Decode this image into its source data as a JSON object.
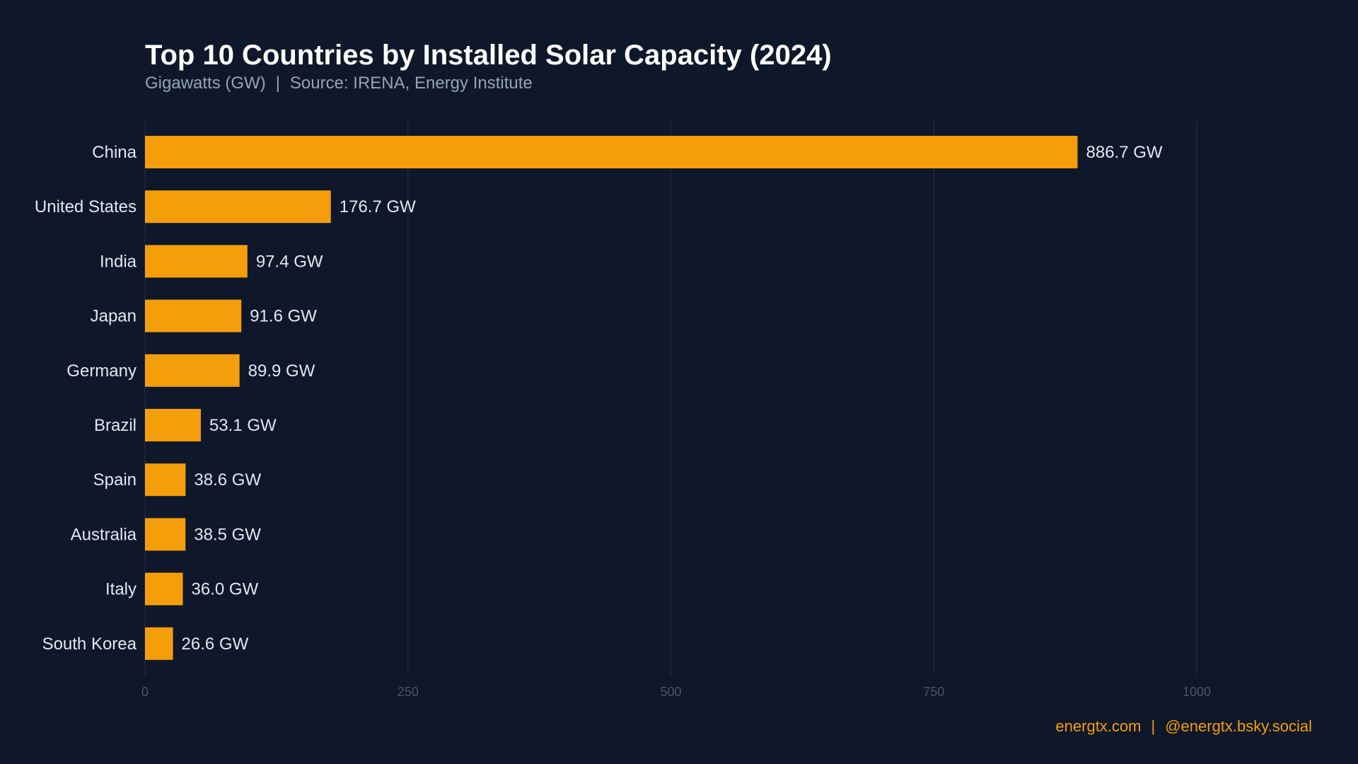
{
  "title": "Top 10 Countries by Installed Solar Capacity (2024)",
  "subtitle": {
    "unit": "Gigawatts (GW)",
    "separator": "|",
    "source": "Source: IRENA, Energy Institute"
  },
  "footer": {
    "site": "energtx.com",
    "separator": "|",
    "social": "@energtx.bsky.social"
  },
  "colors": {
    "background": "#0f172a",
    "bar": "#f59e0b",
    "grid": "#1e293b",
    "label": "#e2e8f0",
    "tick": "#475569",
    "footer": "#f59e0b"
  },
  "chart_data": {
    "type": "bar",
    "orientation": "horizontal",
    "categories": [
      "China",
      "United States",
      "India",
      "Japan",
      "Germany",
      "Brazil",
      "Spain",
      "Australia",
      "Italy",
      "South Korea"
    ],
    "values": [
      886.7,
      176.7,
      97.4,
      91.6,
      89.9,
      53.1,
      38.6,
      38.5,
      36.0,
      26.6
    ],
    "value_labels": [
      "886.7 GW",
      "176.7 GW",
      "97.4 GW",
      "91.6 GW",
      "89.9 GW",
      "53.1 GW",
      "38.6 GW",
      "38.5 GW",
      "36.0 GW",
      "26.6 GW"
    ],
    "title": "Top 10 Countries by Installed Solar Capacity (2024)",
    "xlabel": "",
    "ylabel": "",
    "xticks": [
      0,
      250,
      500,
      750,
      1000
    ],
    "xtick_labels": [
      "0",
      "250",
      "500",
      "750",
      "1000"
    ],
    "xlim": [
      0,
      1000
    ],
    "grid": "vertical"
  }
}
